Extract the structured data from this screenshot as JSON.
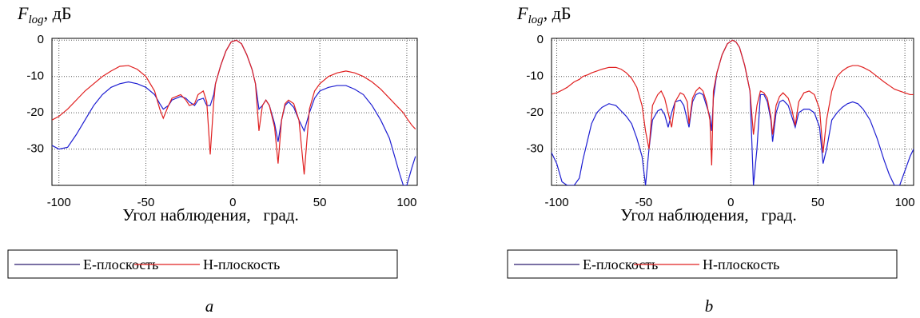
{
  "chart_data": [
    {
      "type": "line",
      "ylabel": "F",
      "ylabel_sub": "log",
      "ylabel_unit": ", дБ",
      "xlabel": "Угол наблюдения,   град.",
      "caption": "a",
      "xlim": [
        -104,
        106
      ],
      "ylim": [
        -40,
        0.5
      ],
      "xticks": [
        -100,
        -50,
        0,
        50,
        100
      ],
      "yticks": [
        0,
        -10,
        -20,
        -30
      ],
      "grid": true,
      "x": [
        -104,
        -100,
        -95,
        -90,
        -85,
        -80,
        -75,
        -70,
        -65,
        -60,
        -55,
        -50,
        -45,
        -42,
        -40,
        -37,
        -35,
        -30,
        -27,
        -25,
        -22,
        -20,
        -17,
        -15,
        -13,
        -11,
        -10,
        -7,
        -4,
        -1,
        2,
        5,
        8,
        11,
        13,
        15,
        17,
        19,
        21,
        24,
        26,
        28,
        30,
        32,
        35,
        38,
        41,
        44,
        47,
        50,
        55,
        60,
        65,
        70,
        75,
        80,
        85,
        90,
        93,
        96,
        98,
        100,
        103,
        105
      ],
      "series": [
        {
          "name": "Е-плоскость",
          "color": "#1e1ed2",
          "legend_color": "#2a1a6e",
          "values": [
            -29,
            -30,
            -29.5,
            -26,
            -22,
            -18,
            -15,
            -13,
            -12,
            -11.5,
            -12,
            -13,
            -15,
            -17.5,
            -19,
            -18,
            -16.5,
            -15.5,
            -16,
            -17,
            -18,
            -16.5,
            -16,
            -18,
            -18,
            -15,
            -12,
            -7,
            -3,
            -0.5,
            0,
            -1,
            -4,
            -8,
            -12,
            -19,
            -18,
            -16.5,
            -18,
            -23,
            -28,
            -22,
            -18,
            -17,
            -18.5,
            -22,
            -25,
            -20,
            -16,
            -14,
            -13,
            -12.5,
            -12.5,
            -13.5,
            -15,
            -18,
            -22,
            -27,
            -32,
            -37,
            -40,
            -40,
            -35,
            -32
          ]
        },
        {
          "name": "Н-плоскость",
          "color": "#e02020",
          "legend_color": "#e02020",
          "values": [
            -22,
            -21,
            -19,
            -16.5,
            -14,
            -12,
            -10,
            -8.5,
            -7.2,
            -7,
            -8,
            -10,
            -14,
            -19,
            -21.5,
            -18,
            -16,
            -15,
            -16.5,
            -18,
            -17.5,
            -15,
            -14,
            -17,
            -31.5,
            -17,
            -12,
            -7,
            -3,
            -0.5,
            0,
            -1,
            -4,
            -8,
            -12,
            -25,
            -18,
            -16.5,
            -18,
            -24,
            -34,
            -22,
            -17.5,
            -16.5,
            -17.5,
            -22,
            -37,
            -19,
            -14,
            -12,
            -10,
            -9,
            -8.5,
            -9,
            -10,
            -11.5,
            -13.5,
            -16,
            -17.5,
            -19,
            -20,
            -21.5,
            -23.5,
            -24.5
          ]
        }
      ]
    },
    {
      "type": "line",
      "ylabel": "F",
      "ylabel_sub": "log",
      "ylabel_unit": ", дБ",
      "xlabel": "Угол наблюдения,   град.",
      "caption": "b",
      "xlim": [
        -103,
        105
      ],
      "ylim": [
        -40,
        0.5
      ],
      "xticks": [
        -100,
        -50,
        0,
        50,
        100
      ],
      "yticks": [
        0,
        -10,
        -20,
        -30
      ],
      "grid": true,
      "x": [
        -104,
        -100,
        -97,
        -94,
        -90,
        -87,
        -85,
        -82,
        -80,
        -77,
        -74,
        -70,
        -66,
        -63,
        -60,
        -57,
        -54,
        -51,
        -49,
        -47,
        -45,
        -42,
        -40,
        -38,
        -36,
        -34,
        -32,
        -29,
        -27,
        -25,
        -24,
        -22,
        -20,
        -18,
        -16,
        -14,
        -12,
        -11,
        -10,
        -8,
        -5,
        -2,
        1,
        3,
        5,
        8,
        11,
        13,
        15,
        17,
        19,
        21,
        23,
        24,
        26,
        28,
        30,
        33,
        35,
        37,
        39,
        42,
        45,
        48,
        51,
        53,
        55,
        58,
        61,
        64,
        67,
        70,
        73,
        76,
        80,
        84,
        88,
        91,
        94,
        97,
        100,
        103,
        105
      ],
      "series": [
        {
          "name": "Е-плоскость",
          "color": "#1e1ed2",
          "legend_color": "#2a1a6e",
          "values": [
            -30,
            -34,
            -39,
            -40,
            -40,
            -38,
            -33,
            -27,
            -23,
            -20,
            -18.5,
            -17.5,
            -18,
            -19.5,
            -21,
            -23,
            -27,
            -32,
            -40,
            -30,
            -22,
            -19.5,
            -19,
            -20.5,
            -24,
            -20,
            -17,
            -16.5,
            -18,
            -22,
            -24,
            -17,
            -15,
            -14.5,
            -15,
            -18,
            -21,
            -25,
            -16,
            -9,
            -4,
            -1,
            0,
            -0.5,
            -2,
            -7,
            -14,
            -40,
            -30,
            -15,
            -15,
            -17,
            -22,
            -28,
            -20,
            -17,
            -16.5,
            -18,
            -21,
            -24,
            -20,
            -19,
            -19,
            -20,
            -24,
            -34,
            -30,
            -22,
            -20,
            -18.5,
            -17.5,
            -17,
            -17.5,
            -19,
            -22,
            -27,
            -33,
            -37,
            -40,
            -40,
            -36,
            -32,
            -30
          ]
        },
        {
          "name": "Н-плоскость",
          "color": "#e02020",
          "legend_color": "#e02020",
          "values": [
            -15,
            -14.5,
            -13.8,
            -13,
            -11.5,
            -10.8,
            -10,
            -9.5,
            -9,
            -8.5,
            -8,
            -7.5,
            -7.5,
            -8,
            -9,
            -10.5,
            -13,
            -18,
            -25,
            -30,
            -18,
            -15,
            -14,
            -16,
            -20,
            -24,
            -17,
            -14.5,
            -15,
            -17,
            -23,
            -16,
            -14,
            -13,
            -14,
            -17,
            -22,
            -34.5,
            -14,
            -9,
            -4,
            -1,
            0,
            -0.5,
            -2,
            -7,
            -14,
            -26,
            -18,
            -14,
            -14.5,
            -16,
            -21,
            -26,
            -18,
            -15.5,
            -14.5,
            -16,
            -19,
            -23.5,
            -17,
            -14.5,
            -14,
            -15,
            -19,
            -31,
            -22,
            -14,
            -10,
            -8.5,
            -7.5,
            -7,
            -7,
            -7.5,
            -8.5,
            -10,
            -11.5,
            -12.5,
            -13.5,
            -14,
            -14.5,
            -15,
            -15
          ]
        }
      ]
    }
  ]
}
